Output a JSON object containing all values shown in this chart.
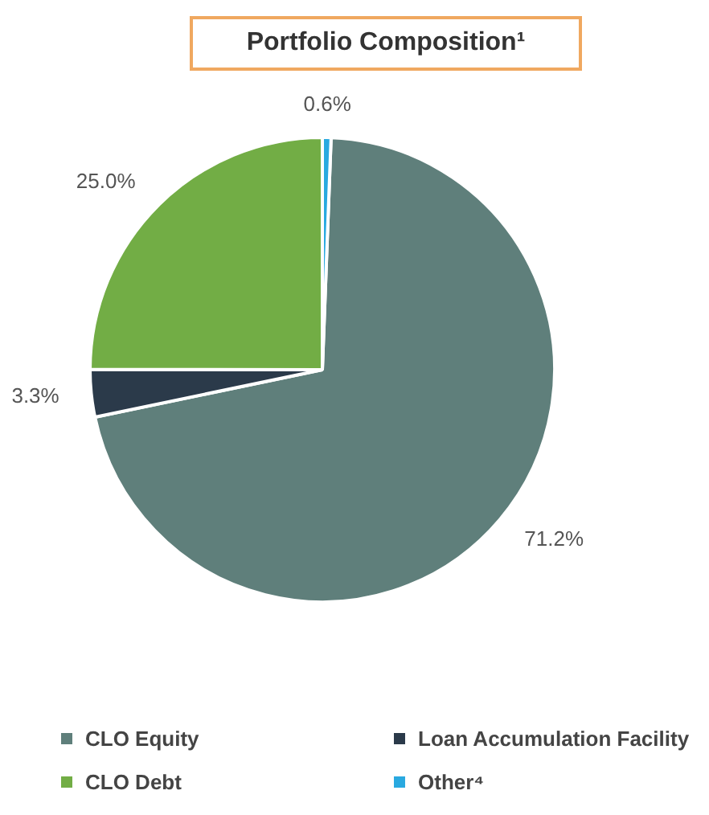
{
  "chart_data": {
    "type": "pie",
    "title": "Portfolio Composition¹",
    "categories": [
      "CLO Equity",
      "Loan Accumulation Facility",
      "CLO Debt",
      "Other⁴"
    ],
    "values": [
      71.2,
      3.3,
      25.0,
      0.6
    ],
    "colors": [
      "#5f7f7b",
      "#2b3a4a",
      "#72ad45",
      "#29a9e0"
    ],
    "value_labels": [
      "71.2%",
      "3.3%",
      "25.0%",
      "0.6%"
    ],
    "legend": "bottom"
  }
}
